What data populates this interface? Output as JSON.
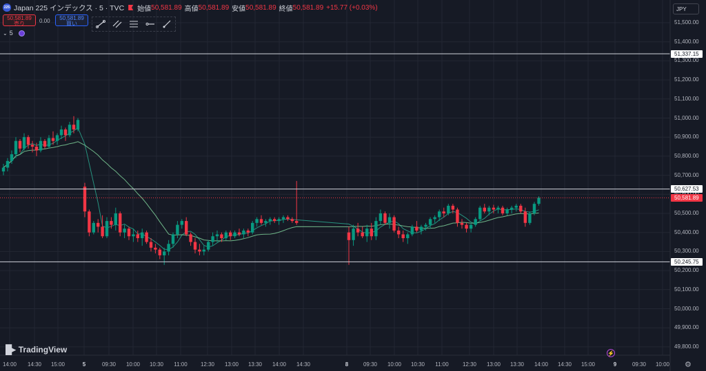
{
  "header": {
    "symbol_title": "Japan 225 インデックス · 5 · TVC",
    "logo_text": "225",
    "ohlc": [
      {
        "label": "始値",
        "value": "50,581.89"
      },
      {
        "label": "高値",
        "value": "50,581.89"
      },
      {
        "label": "安値",
        "value": "50,581.89"
      },
      {
        "label": "終値",
        "value": "50,581.89"
      }
    ],
    "change": "+15.77 (+0.03%)"
  },
  "trade": {
    "sell_price": "50,581.89",
    "sell_label": "売り",
    "spread": "0.00",
    "buy_price": "50,581.89",
    "buy_label": "買い"
  },
  "indicator": {
    "label": "5"
  },
  "currency": "JPY",
  "logo_text": "TradingView",
  "colors": {
    "up": "#089981",
    "down": "#f23645",
    "ma_short": "#2aa88f",
    "ma_long": "#7fd19a",
    "hline": "#d1d4dc",
    "bg": "#161a25",
    "grid": "#232733"
  },
  "y_labels": [
    "51,500.00",
    "51,400.00",
    "51,300.00",
    "51,200.00",
    "51,100.00",
    "51,000.00",
    "50,900.00",
    "50,800.00",
    "50,700.00",
    "50,600.00",
    "50,500.00",
    "50,400.00",
    "50,300.00",
    "50,200.00",
    "50,100.00",
    "50,000.00",
    "49,900.00",
    "49,800.00"
  ],
  "price_tags": [
    {
      "price": 51337.15,
      "label": "51,337.15",
      "style": "white"
    },
    {
      "price": 50627.53,
      "label": "50,627.53",
      "style": "white"
    },
    {
      "price": 50581.89,
      "label": "50,581.89",
      "style": "red"
    },
    {
      "price": 50245.75,
      "label": "50,245.75",
      "style": "white"
    }
  ],
  "x_labels": [
    {
      "text": "14:00",
      "bold": false
    },
    {
      "text": "14:30",
      "bold": false
    },
    {
      "text": "15:00",
      "bold": false
    },
    {
      "text": "5",
      "bold": true
    },
    {
      "text": "09:30",
      "bold": false
    },
    {
      "text": "10:00",
      "bold": false
    },
    {
      "text": "10:30",
      "bold": false
    },
    {
      "text": "11:00",
      "bold": false
    },
    {
      "text": "12:30",
      "bold": false
    },
    {
      "text": "13:00",
      "bold": false
    },
    {
      "text": "13:30",
      "bold": false
    },
    {
      "text": "14:00",
      "bold": false
    },
    {
      "text": "14:30",
      "bold": false
    },
    {
      "text": "8",
      "bold": true
    },
    {
      "text": "09:30",
      "bold": false
    },
    {
      "text": "10:00",
      "bold": false
    },
    {
      "text": "10:30",
      "bold": false
    },
    {
      "text": "11:00",
      "bold": false
    },
    {
      "text": "12:30",
      "bold": false
    },
    {
      "text": "13:00",
      "bold": false
    },
    {
      "text": "13:30",
      "bold": false
    },
    {
      "text": "14:00",
      "bold": false
    },
    {
      "text": "14:30",
      "bold": false
    },
    {
      "text": "15:00",
      "bold": false
    },
    {
      "text": "9",
      "bold": true
    },
    {
      "text": "09:30",
      "bold": false
    },
    {
      "text": "10:00",
      "bold": false
    }
  ],
  "chart_data": {
    "type": "candlestick",
    "ylim": [
      49750,
      51550
    ],
    "horizontal_lines": [
      51337.15,
      50627.53,
      50245.75
    ],
    "current_price": 50581.89,
    "candles": [
      [
        50720,
        50760,
        50700,
        50740
      ],
      [
        50740,
        50790,
        50720,
        50775
      ],
      [
        50775,
        50830,
        50760,
        50810
      ],
      [
        50810,
        50900,
        50790,
        50880
      ],
      [
        50880,
        50890,
        50820,
        50840
      ],
      [
        50840,
        50920,
        50830,
        50900
      ],
      [
        50900,
        50910,
        50840,
        50860
      ],
      [
        50860,
        50880,
        50820,
        50850
      ],
      [
        50850,
        50870,
        50800,
        50830
      ],
      [
        50830,
        50900,
        50820,
        50880
      ],
      [
        50880,
        50890,
        50840,
        50850
      ],
      [
        50850,
        50910,
        50840,
        50895
      ],
      [
        50895,
        50930,
        50860,
        50880
      ],
      [
        50880,
        50920,
        50860,
        50910
      ],
      [
        50910,
        50960,
        50890,
        50940
      ],
      [
        50940,
        50950,
        50880,
        50910
      ],
      [
        50910,
        50980,
        50900,
        50965
      ],
      [
        50965,
        51010,
        50920,
        50940
      ],
      [
        50940,
        51000,
        50930,
        50990
      ],
      [
        50640,
        50660,
        50480,
        50510
      ],
      [
        50510,
        50520,
        50380,
        50400
      ],
      [
        50400,
        50460,
        50390,
        50450
      ],
      [
        50450,
        50470,
        50400,
        50430
      ],
      [
        50430,
        50490,
        50370,
        50380
      ],
      [
        50380,
        50480,
        50370,
        50460
      ],
      [
        50460,
        50480,
        50420,
        50440
      ],
      [
        50440,
        50530,
        50410,
        50500
      ],
      [
        50500,
        50510,
        50380,
        50400
      ],
      [
        50400,
        50440,
        50370,
        50420
      ],
      [
        50420,
        50430,
        50360,
        50380
      ],
      [
        50380,
        50420,
        50350,
        50390
      ],
      [
        50390,
        50410,
        50350,
        50370
      ],
      [
        50370,
        50420,
        50330,
        50400
      ],
      [
        50400,
        50410,
        50340,
        50350
      ],
      [
        50350,
        50370,
        50300,
        50320
      ],
      [
        50320,
        50340,
        50290,
        50310
      ],
      [
        50310,
        50320,
        50260,
        50280
      ],
      [
        50280,
        50320,
        50230,
        50300
      ],
      [
        50300,
        50360,
        50280,
        50340
      ],
      [
        50340,
        50400,
        50320,
        50390
      ],
      [
        50390,
        50460,
        50370,
        50440
      ],
      [
        50440,
        50470,
        50420,
        50460
      ],
      [
        50460,
        50480,
        50380,
        50390
      ],
      [
        50390,
        50400,
        50330,
        50350
      ],
      [
        50350,
        50370,
        50290,
        50310
      ],
      [
        50310,
        50340,
        50280,
        50300
      ],
      [
        50300,
        50330,
        50280,
        50310
      ],
      [
        50310,
        50360,
        50300,
        50350
      ],
      [
        50350,
        50400,
        50330,
        50380
      ],
      [
        50380,
        50410,
        50350,
        50390
      ],
      [
        50390,
        50400,
        50350,
        50370
      ],
      [
        50370,
        50410,
        50360,
        50400
      ],
      [
        50400,
        50410,
        50360,
        50380
      ],
      [
        50380,
        50410,
        50370,
        50400
      ],
      [
        50400,
        50420,
        50380,
        50390
      ],
      [
        50390,
        50420,
        50370,
        50410
      ],
      [
        50410,
        50420,
        50380,
        50400
      ],
      [
        50400,
        50460,
        50390,
        50450
      ],
      [
        50450,
        50480,
        50430,
        50470
      ],
      [
        50470,
        50490,
        50440,
        50450
      ],
      [
        50450,
        50470,
        50430,
        50460
      ],
      [
        50460,
        50480,
        50440,
        50470
      ],
      [
        50470,
        50480,
        50450,
        50460
      ],
      [
        50460,
        50480,
        50440,
        50470
      ],
      [
        50470,
        50490,
        50450,
        50480
      ],
      [
        50480,
        50490,
        50460,
        50470
      ],
      [
        50470,
        50480,
        50450,
        50460
      ],
      [
        50460,
        50670,
        50440,
        50450
      ],
      [
        50400,
        50430,
        50230,
        50360
      ],
      [
        50360,
        50440,
        50330,
        50420
      ],
      [
        50420,
        50450,
        50380,
        50400
      ],
      [
        50400,
        50430,
        50370,
        50380
      ],
      [
        50380,
        50440,
        50350,
        50420
      ],
      [
        50420,
        50450,
        50360,
        50380
      ],
      [
        50380,
        50480,
        50360,
        50460
      ],
      [
        50460,
        50520,
        50440,
        50500
      ],
      [
        50500,
        50510,
        50440,
        50450
      ],
      [
        50450,
        50500,
        50420,
        50480
      ],
      [
        50480,
        50490,
        50400,
        50410
      ],
      [
        50410,
        50430,
        50370,
        50390
      ],
      [
        50390,
        50410,
        50350,
        50370
      ],
      [
        50370,
        50400,
        50340,
        50390
      ],
      [
        50390,
        50440,
        50380,
        50430
      ],
      [
        50430,
        50460,
        50400,
        50410
      ],
      [
        50410,
        50440,
        50390,
        50430
      ],
      [
        50430,
        50450,
        50410,
        50440
      ],
      [
        50440,
        50480,
        50420,
        50470
      ],
      [
        50470,
        50490,
        50450,
        50480
      ],
      [
        50480,
        50520,
        50460,
        50510
      ],
      [
        50510,
        50530,
        50480,
        50500
      ],
      [
        50500,
        50550,
        50490,
        50540
      ],
      [
        50540,
        50550,
        50500,
        50520
      ],
      [
        50520,
        50530,
        50430,
        50450
      ],
      [
        50450,
        50470,
        50420,
        50440
      ],
      [
        50440,
        50450,
        50400,
        50420
      ],
      [
        50420,
        50450,
        50400,
        50440
      ],
      [
        50440,
        50480,
        50430,
        50470
      ],
      [
        50470,
        50540,
        50460,
        50530
      ],
      [
        50530,
        50550,
        50500,
        50510
      ],
      [
        50510,
        50540,
        50490,
        50530
      ],
      [
        50530,
        50545,
        50500,
        50520
      ],
      [
        50520,
        50540,
        50500,
        50530
      ],
      [
        50530,
        50540,
        50490,
        50500
      ],
      [
        50500,
        50530,
        50490,
        50520
      ],
      [
        50520,
        50540,
        50500,
        50530
      ],
      [
        50530,
        50550,
        50510,
        50540
      ],
      [
        50540,
        50550,
        50500,
        50510
      ],
      [
        50510,
        50530,
        50430,
        50450
      ],
      [
        50450,
        50510,
        50440,
        50500
      ],
      [
        50500,
        50560,
        50490,
        50550
      ],
      [
        50550,
        50590,
        50540,
        50582
      ]
    ]
  }
}
